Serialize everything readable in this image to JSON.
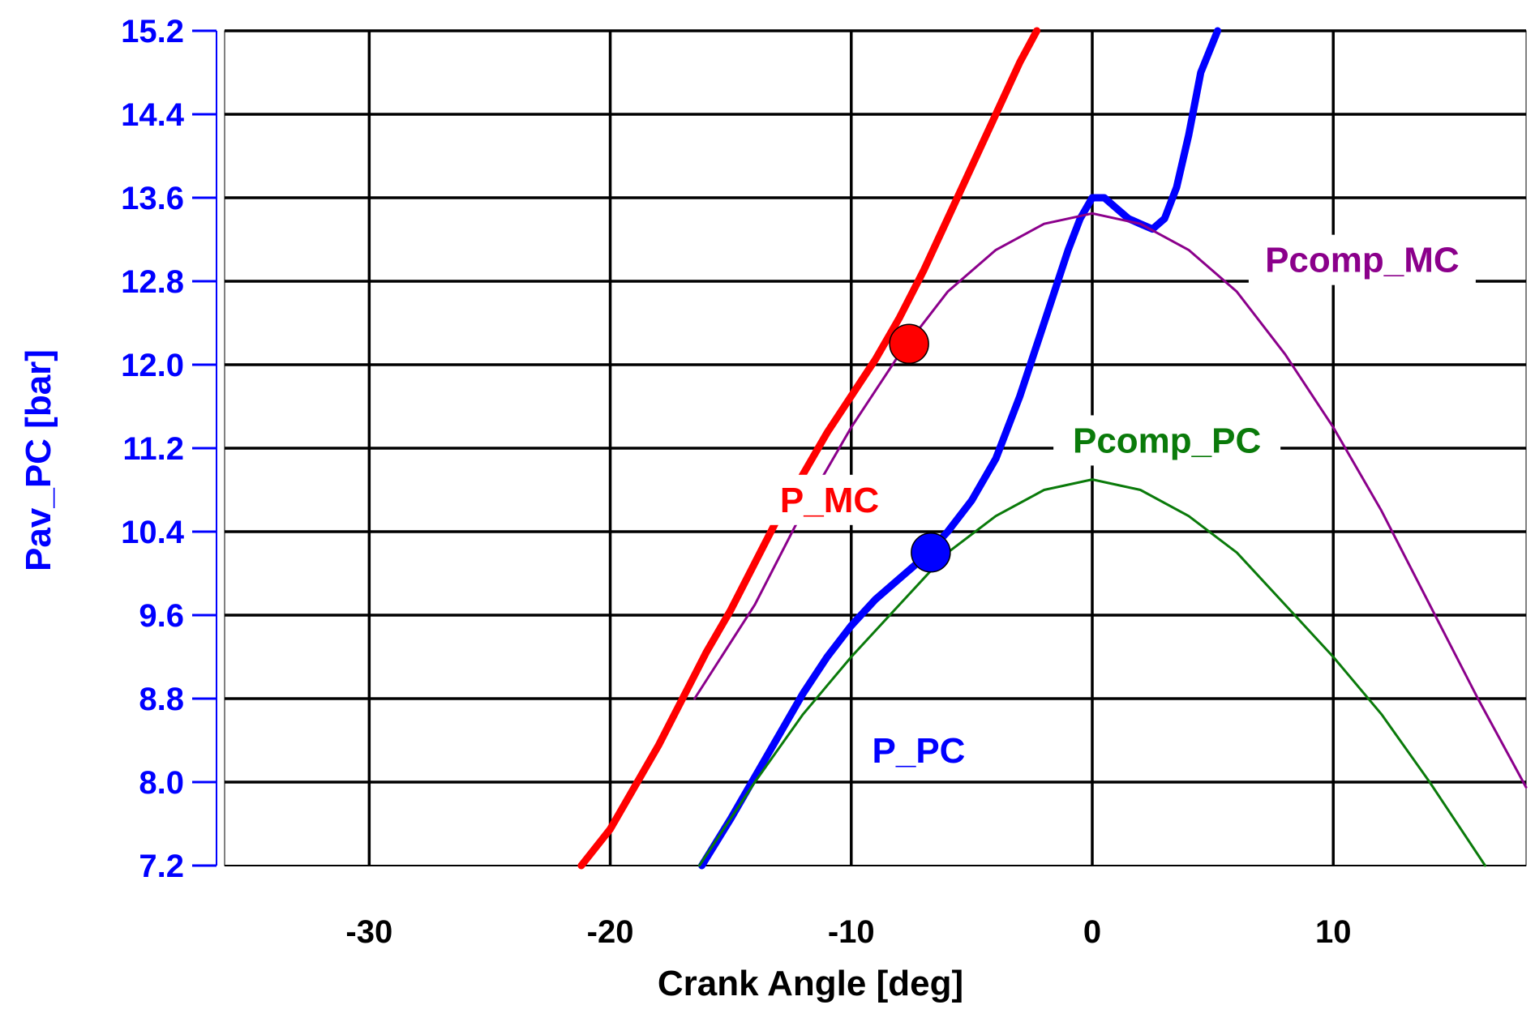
{
  "chart_data": {
    "type": "line",
    "title": "",
    "xlabel": "Crank Angle [deg]",
    "ylabel": "Pav_PC [bar]",
    "xlim": [
      -36,
      18
    ],
    "ylim": [
      7.2,
      15.2
    ],
    "x_ticks": [
      -30,
      -20,
      -10,
      0,
      10
    ],
    "x_tick_labels": [
      "-30",
      "-20",
      "-10",
      "0",
      "10"
    ],
    "y_ticks": [
      7.2,
      8.0,
      8.8,
      9.6,
      10.4,
      11.2,
      12.0,
      12.8,
      13.6,
      14.4,
      15.2
    ],
    "y_tick_labels": [
      "7.2",
      "8.0",
      "8.8",
      "9.6",
      "10.4",
      "11.2",
      "12.0",
      "12.8",
      "13.6",
      "14.4",
      "15.2"
    ],
    "grid": true,
    "colors": {
      "axis": "#0000ff",
      "grid": "#000000",
      "text": "#000000",
      "p_mc": "#ff0000",
      "p_pc": "#0000ff",
      "pcomp_mc": "#8b008b",
      "pcomp_pc": "#0a7a0a"
    },
    "series": [
      {
        "name": "P_MC",
        "color": "#ff0000",
        "style": "thick",
        "x": [
          -21.2,
          -20,
          -19,
          -18,
          -17,
          -16,
          -15,
          -14,
          -13,
          -12,
          -11,
          -10,
          -9,
          -8,
          -7,
          -6,
          -5,
          -4,
          -3,
          -2.3
        ],
        "y": [
          7.2,
          7.55,
          7.95,
          8.35,
          8.8,
          9.25,
          9.65,
          10.1,
          10.55,
          10.95,
          11.35,
          11.7,
          12.05,
          12.45,
          12.9,
          13.4,
          13.9,
          14.4,
          14.9,
          15.2
        ]
      },
      {
        "name": "P_PC",
        "color": "#0000ff",
        "style": "thick",
        "x": [
          -16.2,
          -15,
          -14,
          -13,
          -12,
          -11,
          -10,
          -9,
          -8,
          -7,
          -6,
          -5,
          -4,
          -3,
          -2,
          -1,
          -0.5,
          0,
          0.5,
          1,
          1.5,
          2,
          2.5,
          3,
          3.5,
          4,
          4.5,
          5.2
        ],
        "y": [
          7.2,
          7.65,
          8.05,
          8.45,
          8.85,
          9.2,
          9.5,
          9.75,
          9.95,
          10.15,
          10.4,
          10.7,
          11.1,
          11.7,
          12.4,
          13.1,
          13.4,
          13.6,
          13.6,
          13.5,
          13.4,
          13.35,
          13.3,
          13.4,
          13.7,
          14.2,
          14.8,
          15.2
        ]
      },
      {
        "name": "Pcomp_MC",
        "color": "#8b008b",
        "style": "thin",
        "x": [
          -16.5,
          -14,
          -12,
          -10,
          -8,
          -6,
          -4,
          -2,
          0,
          2,
          4,
          6,
          8,
          10,
          12,
          14,
          16,
          18
        ],
        "y": [
          8.8,
          9.7,
          10.6,
          11.4,
          12.1,
          12.7,
          13.1,
          13.35,
          13.45,
          13.35,
          13.1,
          12.7,
          12.1,
          11.4,
          10.6,
          9.7,
          8.8,
          7.95
        ]
      },
      {
        "name": "Pcomp_PC",
        "color": "#0a7a0a",
        "style": "thin",
        "x": [
          -16.3,
          -14,
          -12,
          -10,
          -8,
          -6,
          -4,
          -2,
          0,
          2,
          4,
          6,
          8,
          10,
          12,
          14,
          16.3
        ],
        "y": [
          7.2,
          8.0,
          8.65,
          9.2,
          9.7,
          10.2,
          10.55,
          10.8,
          10.9,
          10.8,
          10.55,
          10.2,
          9.7,
          9.2,
          8.65,
          8.0,
          7.2
        ]
      }
    ],
    "markers": [
      {
        "name": "mc-marker",
        "x": -7.6,
        "y": 12.2,
        "color": "#ff0000"
      },
      {
        "name": "pc-marker",
        "x": -6.7,
        "y": 10.2,
        "color": "#0000ff"
      }
    ],
    "annotations": [
      {
        "name": "label-p-mc",
        "text": "P_MC",
        "x": -10.9,
        "y": 10.65,
        "color": "#ff0000"
      },
      {
        "name": "label-p-pc",
        "text": "P_PC",
        "x": -7.2,
        "y": 8.25,
        "color": "#0000ff"
      },
      {
        "name": "label-pcomp-pc",
        "text": "Pcomp_PC",
        "x": 3.1,
        "y": 11.22,
        "color": "#0a7a0a"
      },
      {
        "name": "label-pcomp-mc",
        "text": "Pcomp_MC",
        "x": 11.2,
        "y": 12.95,
        "color": "#8b008b"
      }
    ]
  }
}
